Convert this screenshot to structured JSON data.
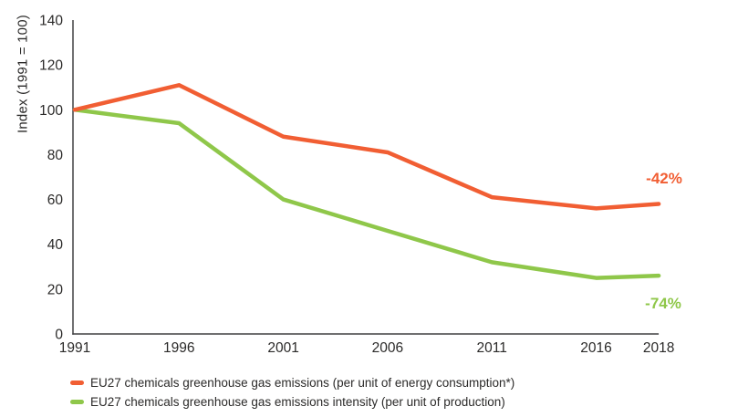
{
  "chart_data": {
    "type": "line",
    "x": [
      1991,
      1996,
      2001,
      2006,
      2011,
      2016,
      2018
    ],
    "series": [
      {
        "id": "emissions-per-energy",
        "name": "EU27 chemicals greenhouse gas emissions (per unit of energy consumption*)",
        "color": "#F15E33",
        "values": [
          100,
          111,
          88,
          81,
          61,
          56,
          58
        ],
        "end_label": "-42%"
      },
      {
        "id": "emissions-intensity",
        "name": "EU27 chemicals greenhouse gas emissions intensity (per unit of production)",
        "color": "#8FC74A",
        "values": [
          100,
          94,
          60,
          46,
          32,
          25,
          26
        ],
        "end_label": "-74%"
      }
    ],
    "title": "",
    "xlabel": "",
    "ylabel": "Index (1991 = 100)",
    "ylim": [
      0,
      140
    ],
    "yticks": [
      0,
      20,
      40,
      60,
      80,
      100,
      120,
      140
    ],
    "grid": false,
    "legend_position": "bottom-left"
  },
  "colors": {
    "axis": "#414042",
    "tick_text": "#2b2a29",
    "background": "#ffffff"
  }
}
